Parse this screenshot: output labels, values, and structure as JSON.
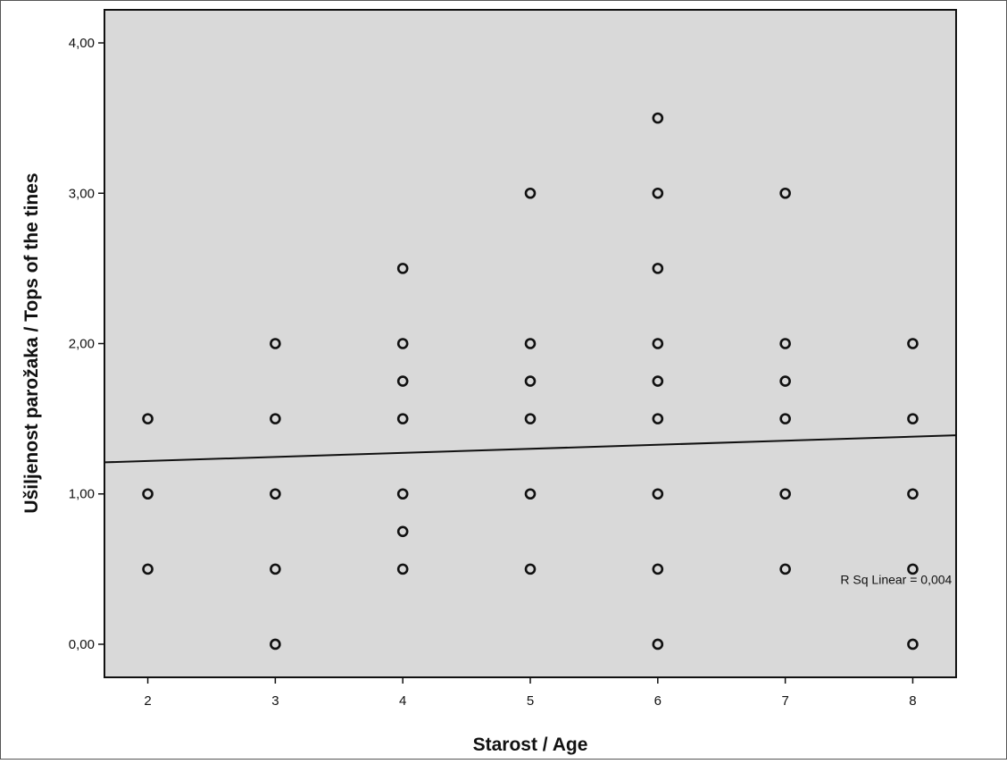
{
  "chart_data": {
    "type": "scatter",
    "title": "",
    "xlabel": "Starost / Age",
    "ylabel": "Ušiljenost parožaka / Tops of the tines",
    "xlim": [
      1.66,
      8.34
    ],
    "ylim": [
      -0.22,
      4.22
    ],
    "x_ticks": [
      2,
      3,
      4,
      5,
      6,
      7,
      8
    ],
    "x_tick_labels": [
      "2",
      "3",
      "4",
      "5",
      "6",
      "7",
      "8"
    ],
    "y_ticks": [
      0,
      1,
      2,
      3,
      4
    ],
    "y_tick_labels": [
      "0,00",
      "1,00",
      "2,00",
      "3,00",
      "4,00"
    ],
    "grid": false,
    "colors": {
      "plot_background": "#d9d9d9",
      "marker": "#111111",
      "fit_line": "#111111"
    },
    "points": [
      {
        "x": 2,
        "y": 1.5
      },
      {
        "x": 2,
        "y": 1.0
      },
      {
        "x": 2,
        "y": 0.5
      },
      {
        "x": 3,
        "y": 2.0
      },
      {
        "x": 3,
        "y": 1.5
      },
      {
        "x": 3,
        "y": 1.0
      },
      {
        "x": 3,
        "y": 0.5
      },
      {
        "x": 3,
        "y": 0.0
      },
      {
        "x": 4,
        "y": 2.5
      },
      {
        "x": 4,
        "y": 2.0
      },
      {
        "x": 4,
        "y": 1.75
      },
      {
        "x": 4,
        "y": 1.5
      },
      {
        "x": 4,
        "y": 1.0
      },
      {
        "x": 4,
        "y": 0.75
      },
      {
        "x": 4,
        "y": 0.5
      },
      {
        "x": 5,
        "y": 3.0
      },
      {
        "x": 5,
        "y": 2.0
      },
      {
        "x": 5,
        "y": 1.75
      },
      {
        "x": 5,
        "y": 1.5
      },
      {
        "x": 5,
        "y": 1.0
      },
      {
        "x": 5,
        "y": 0.5
      },
      {
        "x": 6,
        "y": 3.5
      },
      {
        "x": 6,
        "y": 3.0
      },
      {
        "x": 6,
        "y": 2.5
      },
      {
        "x": 6,
        "y": 2.0
      },
      {
        "x": 6,
        "y": 1.75
      },
      {
        "x": 6,
        "y": 1.5
      },
      {
        "x": 6,
        "y": 1.0
      },
      {
        "x": 6,
        "y": 0.5
      },
      {
        "x": 6,
        "y": 0.0
      },
      {
        "x": 7,
        "y": 3.0
      },
      {
        "x": 7,
        "y": 2.0
      },
      {
        "x": 7,
        "y": 1.75
      },
      {
        "x": 7,
        "y": 1.5
      },
      {
        "x": 7,
        "y": 1.0
      },
      {
        "x": 7,
        "y": 0.5
      },
      {
        "x": 8,
        "y": 2.0
      },
      {
        "x": 8,
        "y": 1.5
      },
      {
        "x": 8,
        "y": 1.0
      },
      {
        "x": 8,
        "y": 0.5
      },
      {
        "x": 8,
        "y": 0.0
      }
    ],
    "fit_line": {
      "type": "linear",
      "x": [
        1.66,
        8.34
      ],
      "y": [
        1.21,
        1.39
      ]
    },
    "annotations": [
      {
        "text": "R Sq Linear = 0,004",
        "x": 7.87,
        "y": 0.4
      }
    ]
  }
}
